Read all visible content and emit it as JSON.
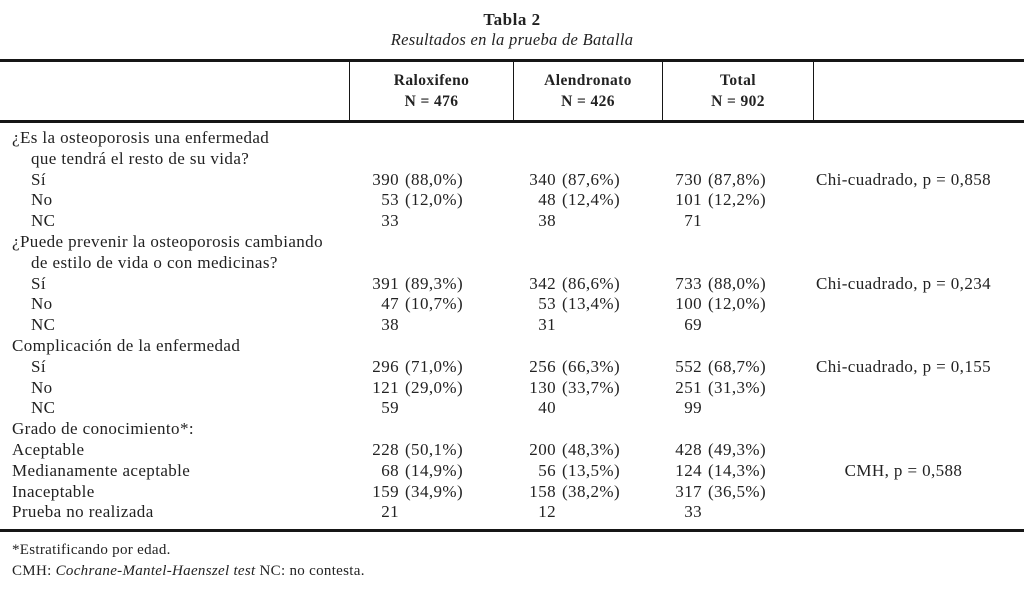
{
  "title": "Tabla 2",
  "subtitle": "Resultados en la prueba de Batalla",
  "columns": [
    {
      "label": "Raloxifeno",
      "n": "N = 476"
    },
    {
      "label": "Alendronato",
      "n": "N = 426"
    },
    {
      "label": "Total",
      "n": "N = 902"
    }
  ],
  "rows": [
    {
      "label": "¿Es la osteoporosis una enfermedad",
      "indent": 0,
      "values": [
        null,
        null,
        null
      ],
      "stat": ""
    },
    {
      "label": "que tendrá el resto de su vida?",
      "indent": 1,
      "values": [
        null,
        null,
        null
      ],
      "stat": ""
    },
    {
      "label": "Sí",
      "indent": 1,
      "values": [
        {
          "n": "390",
          "pct": "(88,0%)"
        },
        {
          "n": "340",
          "pct": "(87,6%)"
        },
        {
          "n": "730",
          "pct": "(87,8%)"
        }
      ],
      "stat": "Chi-cuadrado, p = 0,858"
    },
    {
      "label": "No",
      "indent": 1,
      "values": [
        {
          "n": "53",
          "pct": "(12,0%)"
        },
        {
          "n": "48",
          "pct": "(12,4%)"
        },
        {
          "n": "101",
          "pct": "(12,2%)"
        }
      ],
      "stat": ""
    },
    {
      "label": "NC",
      "indent": 1,
      "values": [
        {
          "n": "33",
          "pct": ""
        },
        {
          "n": "38",
          "pct": ""
        },
        {
          "n": "71",
          "pct": ""
        }
      ],
      "stat": ""
    },
    {
      "label": "¿Puede prevenir la osteoporosis cambiando",
      "indent": 0,
      "values": [
        null,
        null,
        null
      ],
      "stat": ""
    },
    {
      "label": "de estilo de vida o con medicinas?",
      "indent": 1,
      "values": [
        null,
        null,
        null
      ],
      "stat": ""
    },
    {
      "label": "Sí",
      "indent": 1,
      "values": [
        {
          "n": "391",
          "pct": "(89,3%)"
        },
        {
          "n": "342",
          "pct": "(86,6%)"
        },
        {
          "n": "733",
          "pct": "(88,0%)"
        }
      ],
      "stat": "Chi-cuadrado, p = 0,234"
    },
    {
      "label": "No",
      "indent": 1,
      "values": [
        {
          "n": "47",
          "pct": "(10,7%)"
        },
        {
          "n": "53",
          "pct": "(13,4%)"
        },
        {
          "n": "100",
          "pct": "(12,0%)"
        }
      ],
      "stat": ""
    },
    {
      "label": "NC",
      "indent": 1,
      "values": [
        {
          "n": "38",
          "pct": ""
        },
        {
          "n": "31",
          "pct": ""
        },
        {
          "n": "69",
          "pct": ""
        }
      ],
      "stat": ""
    },
    {
      "label": "Complicación de la enfermedad",
      "indent": 0,
      "values": [
        null,
        null,
        null
      ],
      "stat": ""
    },
    {
      "label": "Sí",
      "indent": 1,
      "values": [
        {
          "n": "296",
          "pct": "(71,0%)"
        },
        {
          "n": "256",
          "pct": "(66,3%)"
        },
        {
          "n": "552",
          "pct": "(68,7%)"
        }
      ],
      "stat": "Chi-cuadrado, p = 0,155"
    },
    {
      "label": "No",
      "indent": 1,
      "values": [
        {
          "n": "121",
          "pct": "(29,0%)"
        },
        {
          "n": "130",
          "pct": "(33,7%)"
        },
        {
          "n": "251",
          "pct": "(31,3%)"
        }
      ],
      "stat": ""
    },
    {
      "label": "NC",
      "indent": 1,
      "values": [
        {
          "n": "59",
          "pct": ""
        },
        {
          "n": "40",
          "pct": ""
        },
        {
          "n": "99",
          "pct": ""
        }
      ],
      "stat": ""
    },
    {
      "label": "Grado de conocimiento*:",
      "indent": 0,
      "values": [
        null,
        null,
        null
      ],
      "stat": ""
    },
    {
      "label": "Aceptable",
      "indent": 0,
      "values": [
        {
          "n": "228",
          "pct": "(50,1%)"
        },
        {
          "n": "200",
          "pct": "(48,3%)"
        },
        {
          "n": "428",
          "pct": "(49,3%)"
        }
      ],
      "stat": ""
    },
    {
      "label": "Medianamente aceptable",
      "indent": 0,
      "values": [
        {
          "n": "68",
          "pct": "(14,9%)"
        },
        {
          "n": "56",
          "pct": "(13,5%)"
        },
        {
          "n": "124",
          "pct": "(14,3%)"
        }
      ],
      "stat": "CMH, p = 0,588"
    },
    {
      "label": "Inaceptable",
      "indent": 0,
      "values": [
        {
          "n": "159",
          "pct": "(34,9%)"
        },
        {
          "n": "158",
          "pct": "(38,2%)"
        },
        {
          "n": "317",
          "pct": "(36,5%)"
        }
      ],
      "stat": ""
    },
    {
      "label": "Prueba no realizada",
      "indent": 0,
      "values": [
        {
          "n": "21",
          "pct": ""
        },
        {
          "n": "12",
          "pct": ""
        },
        {
          "n": "33",
          "pct": ""
        }
      ],
      "stat": ""
    }
  ],
  "footnotes": {
    "line1": "*Estratificando por edad.",
    "line2_prefix": "CMH: ",
    "line2_italic": "Cochrane-Mantel-Haenszel test",
    "line2_suffix": " NC: no contesta."
  }
}
